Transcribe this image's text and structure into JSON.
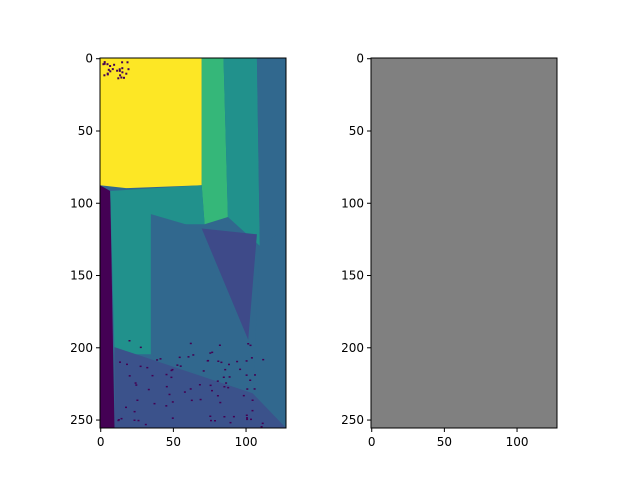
{
  "colors": {
    "purple": "#440154",
    "indigo": "#3b528b",
    "slate": "#3e4a89",
    "blue": "#31688e",
    "teal": "#21918c",
    "green": "#35b779",
    "yellow": "#fde725",
    "gray": "#808080",
    "axis": "#000000"
  },
  "chart_data": [
    {
      "type": "heatmap",
      "title": "",
      "xlabel": "",
      "ylabel": "",
      "width": 128,
      "height": 256,
      "xlim": [
        0,
        128
      ],
      "ylim": [
        256,
        0
      ],
      "x_ticks": [
        0,
        50,
        100
      ],
      "y_ticks": [
        0,
        50,
        100,
        150,
        200,
        250
      ],
      "colormap": "viridis",
      "description_regions": [
        {
          "name": "bright-region",
          "color_key": "yellow",
          "polygon": [
            [
              0,
              0
            ],
            [
              70,
              0
            ],
            [
              70,
              88
            ],
            [
              18,
              90
            ],
            [
              0,
              88
            ]
          ]
        },
        {
          "name": "left-dark-strip",
          "color_key": "purple",
          "polygon": [
            [
              0,
              88
            ],
            [
              7,
              92
            ],
            [
              10,
              256
            ],
            [
              0,
              256
            ]
          ]
        },
        {
          "name": "mid-green-band",
          "color_key": "green",
          "polygon": [
            [
              70,
              0
            ],
            [
              85,
              0
            ],
            [
              88,
              110
            ],
            [
              72,
              115
            ],
            [
              70,
              88
            ]
          ]
        },
        {
          "name": "mid-teal-band",
          "color_key": "teal",
          "polygon": [
            [
              85,
              0
            ],
            [
              108,
              0
            ],
            [
              110,
              130
            ],
            [
              88,
              110
            ]
          ]
        },
        {
          "name": "right-blue-band",
          "color_key": "blue",
          "polygon": [
            [
              108,
              0
            ],
            [
              128,
              0
            ],
            [
              128,
              118
            ],
            [
              110,
              130
            ]
          ]
        },
        {
          "name": "teal-panel",
          "color_key": "teal",
          "polygon": [
            [
              7,
              92
            ],
            [
              70,
              88
            ],
            [
              72,
              115
            ],
            [
              35,
              115
            ],
            [
              35,
              205
            ],
            [
              10,
              205
            ]
          ]
        },
        {
          "name": "inner-panel",
          "color_key": "blue",
          "polygon": [
            [
              35,
              108
            ],
            [
              110,
              130
            ],
            [
              105,
              235
            ],
            [
              35,
              205
            ]
          ]
        },
        {
          "name": "diagonal-slate",
          "color_key": "slate",
          "polygon": [
            [
              70,
              118
            ],
            [
              108,
              122
            ],
            [
              102,
              195
            ]
          ]
        },
        {
          "name": "lower-region",
          "color_key": "indigo",
          "polygon": [
            [
              10,
              200
            ],
            [
              105,
              232
            ],
            [
              128,
              256
            ],
            [
              10,
              256
            ]
          ]
        }
      ]
    },
    {
      "type": "heatmap",
      "title": "",
      "xlabel": "",
      "ylabel": "",
      "width": 128,
      "height": 256,
      "xlim": [
        0,
        128
      ],
      "ylim": [
        256,
        0
      ],
      "x_ticks": [
        0,
        50,
        100
      ],
      "y_ticks": [
        0,
        50,
        100,
        150,
        200,
        250
      ],
      "uniform_color_key": "gray"
    }
  ]
}
